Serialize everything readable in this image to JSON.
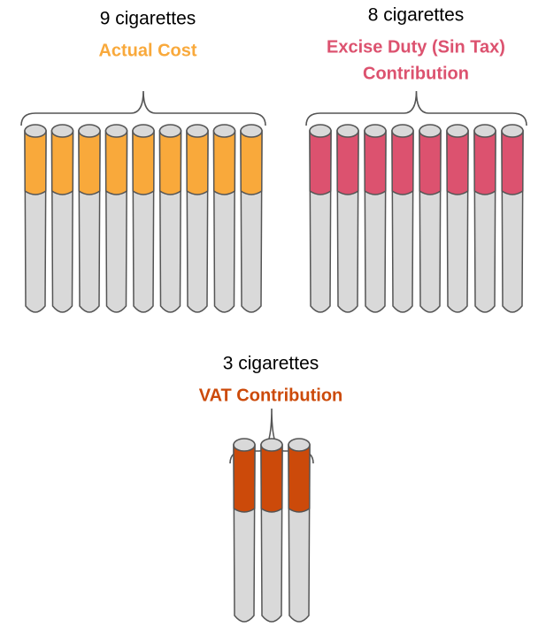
{
  "groups": [
    {
      "count_label": "9 cigarettes",
      "label_lines": [
        "Actual Cost"
      ],
      "color": "#f9a93b",
      "count": 9
    },
    {
      "count_label": "8 cigarettes",
      "label_lines": [
        "Excise Duty (Sin Tax)",
        "Contribution"
      ],
      "color": "#dc526f",
      "count": 8
    },
    {
      "count_label": "3 cigarettes",
      "label_lines": [
        "VAT Contribution"
      ],
      "color": "#cc4a0a",
      "count": 3
    }
  ]
}
